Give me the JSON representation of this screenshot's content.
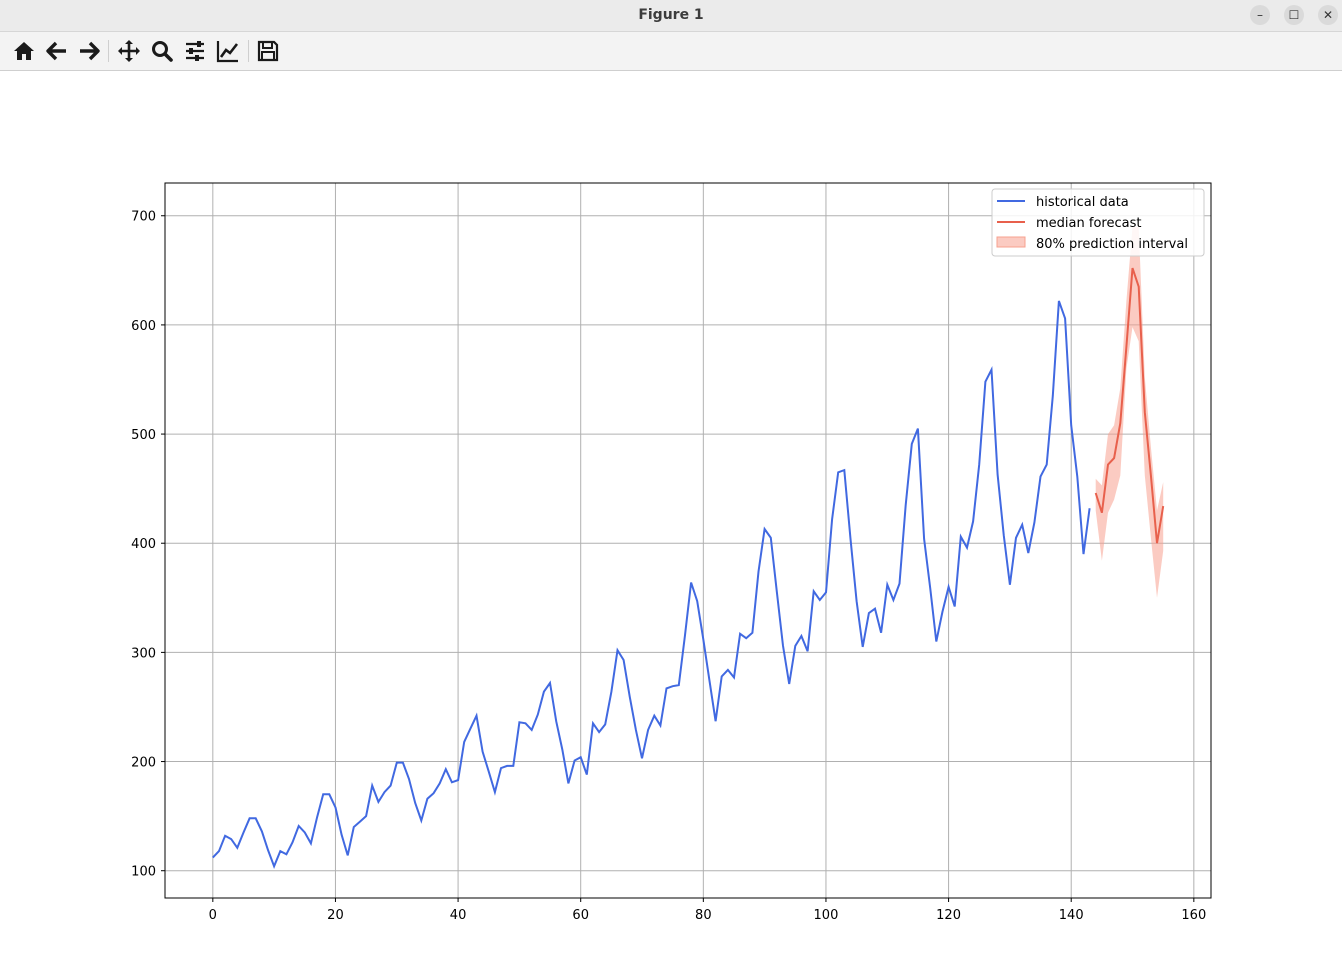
{
  "window": {
    "title": "Figure 1"
  },
  "toolbar": {
    "buttons": [
      "home-icon",
      "back-arrow-icon",
      "forward-arrow-icon",
      "pan-move-icon",
      "zoom-magnifier-icon",
      "configure-subplots-icon",
      "edit-axis-icon",
      "save-floppy-icon"
    ]
  },
  "colors": {
    "historical": "#4169e1",
    "forecast": "#e8604c",
    "interval": "#f7a08f"
  },
  "legend": {
    "historical": "historical data",
    "median": "median forecast",
    "interval": "80% prediction interval"
  },
  "chart_data": {
    "type": "line",
    "title": "",
    "xlabel": "",
    "ylabel": "",
    "xlim": [
      -7.8,
      162.8
    ],
    "ylim": [
      75,
      730
    ],
    "xticks": [
      0,
      20,
      40,
      60,
      80,
      100,
      120,
      140,
      160
    ],
    "yticks": [
      100,
      200,
      300,
      400,
      500,
      600,
      700
    ],
    "grid": true,
    "legend_position": "upper right",
    "series": [
      {
        "name": "historical data",
        "x_start": 0,
        "values": [
          112,
          118,
          132,
          129,
          121,
          135,
          148,
          148,
          136,
          119,
          104,
          118,
          115,
          126,
          141,
          135,
          125,
          149,
          170,
          170,
          158,
          133,
          114,
          140,
          145,
          150,
          178,
          163,
          172,
          178,
          199,
          199,
          184,
          162,
          146,
          166,
          171,
          180,
          193,
          181,
          183,
          218,
          230,
          242,
          209,
          191,
          172,
          194,
          196,
          196,
          236,
          235,
          229,
          243,
          264,
          272,
          237,
          211,
          180,
          201,
          204,
          188,
          235,
          227,
          234,
          264,
          302,
          293,
          259,
          229,
          203,
          229,
          242,
          233,
          267,
          269,
          270,
          315,
          364,
          347,
          312,
          274,
          237,
          278,
          284,
          277,
          317,
          313,
          318,
          374,
          413,
          405,
          355,
          306,
          271,
          306,
          315,
          301,
          356,
          348,
          355,
          422,
          465,
          467,
          404,
          347,
          305,
          336,
          340,
          318,
          362,
          348,
          363,
          435,
          491,
          505,
          404,
          359,
          310,
          337,
          360,
          342,
          406,
          396,
          420,
          472,
          548,
          559,
          463,
          407,
          362,
          405,
          417,
          391,
          419,
          461,
          472,
          535,
          622,
          606,
          508,
          461,
          390,
          432
        ]
      },
      {
        "name": "median forecast",
        "x_start": 144,
        "values": [
          446,
          428,
          472,
          478,
          510,
          580,
          652,
          635,
          520,
          462,
          400,
          434
        ]
      }
    ],
    "interval": {
      "name": "80% prediction interval",
      "x_start": 144,
      "lower": [
        430,
        384,
        428,
        440,
        462,
        560,
        598,
        585,
        462,
        405,
        350,
        393
      ],
      "upper": [
        459,
        453,
        500,
        508,
        542,
        622,
        690,
        690,
        552,
        488,
        430,
        456
      ]
    }
  }
}
